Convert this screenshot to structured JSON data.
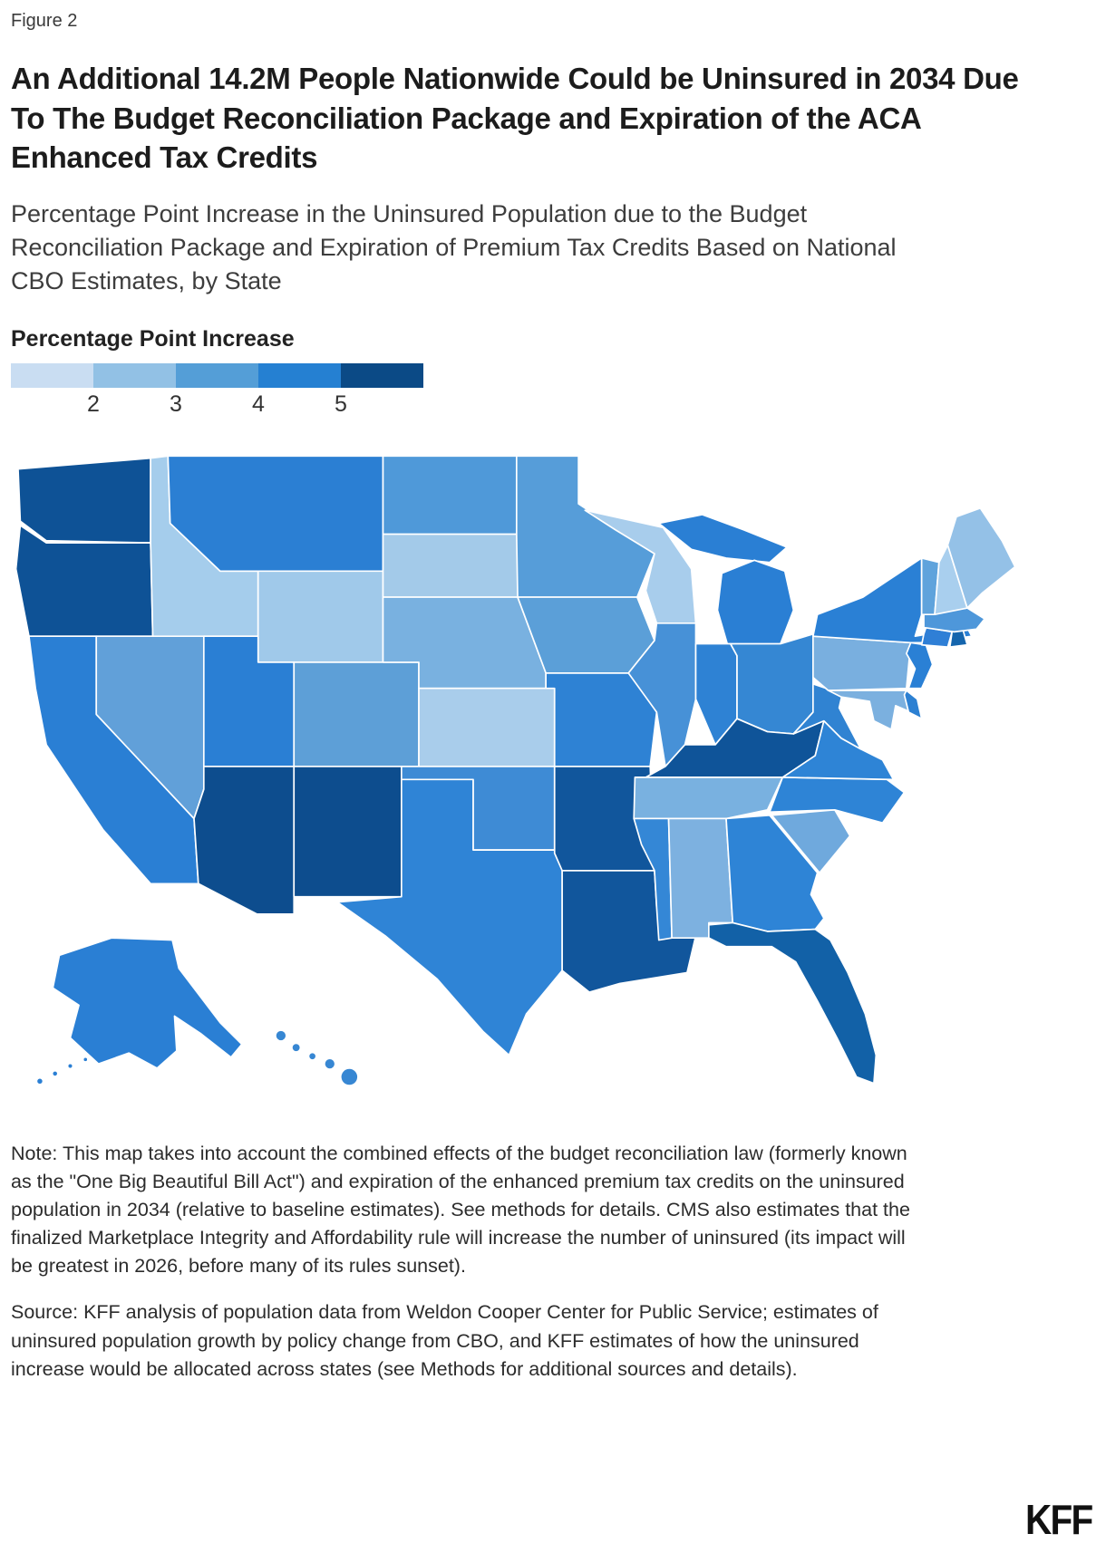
{
  "figure_label": "Figure 2",
  "title": "An Additional 14.2M People Nationwide Could be Uninsured in 2034 Due To The Budget Reconciliation Package and Expiration of the ACA Enhanced Tax Credits",
  "subtitle": "Percentage Point Increase in the Uninsured Population due to the Budget Reconciliation Package and Expiration of Premium Tax Credits Based on National CBO Estimates, by State",
  "note": "Note: This map takes into account the combined effects of the budget reconciliation law (formerly known as the \"One Big Beautiful Bill Act\") and expiration of the enhanced premium tax credits on the uninsured population in 2034 (relative to baseline estimates). See methods for details. CMS also estimates that the finalized Marketplace Integrity and Affordability rule will increase the number of uninsured (its impact will be greatest in 2026, before many of its rules sunset).",
  "source": "Source: KFF analysis of population data from Weldon Cooper Center for Public Service; estimates of uninsured population growth by policy change from CBO, and KFF estimates of how the uninsured increase would be allocated across states (see Methods for additional sources and details).",
  "logo_text": "KFF",
  "chart_data": {
    "type": "choropleth_map",
    "region": "United States, by state",
    "metric": "Percentage point increase in the uninsured population in 2034",
    "unit": "percentage points",
    "legend": {
      "title": "Percentage Point Increase",
      "tick_labels": [
        "2",
        "3",
        "4",
        "5"
      ],
      "colors": [
        "#C9DDF2",
        "#92C1E5",
        "#549ED7",
        "#2580D2",
        "#0B4A86"
      ],
      "scale_min": 1.5,
      "scale_max": 5.5
    },
    "value_note": "approx_value estimated from the continuous blue color scale shown in the legend; fill is the rendered state color",
    "states": [
      {
        "abbr": "WA",
        "name": "Washington",
        "approx_value": 5.5,
        "fill": "#0E5296"
      },
      {
        "abbr": "OR",
        "name": "Oregon",
        "approx_value": 5.5,
        "fill": "#0E5296"
      },
      {
        "abbr": "CA",
        "name": "California",
        "approx_value": 4.5,
        "fill": "#2A7FD4"
      },
      {
        "abbr": "NV",
        "name": "Nevada",
        "approx_value": 3.6,
        "fill": "#61A0D9"
      },
      {
        "abbr": "ID",
        "name": "Idaho",
        "approx_value": 2.5,
        "fill": "#A5CDEC"
      },
      {
        "abbr": "MT",
        "name": "Montana",
        "approx_value": 4.4,
        "fill": "#2B7FD3"
      },
      {
        "abbr": "WY",
        "name": "Wyoming",
        "approx_value": 2.4,
        "fill": "#A0C9EA"
      },
      {
        "abbr": "UT",
        "name": "Utah",
        "approx_value": 4.5,
        "fill": "#2A7FD4"
      },
      {
        "abbr": "CO",
        "name": "Colorado",
        "approx_value": 3.6,
        "fill": "#5D9FD7"
      },
      {
        "abbr": "AZ",
        "name": "Arizona",
        "approx_value": 5.6,
        "fill": "#0D4D8E"
      },
      {
        "abbr": "NM",
        "name": "New Mexico",
        "approx_value": 5.6,
        "fill": "#0D4D8E"
      },
      {
        "abbr": "AK",
        "name": "Alaska",
        "approx_value": 4.4,
        "fill": "#2A7FD4"
      },
      {
        "abbr": "HI",
        "name": "Hawaii",
        "approx_value": 4.2,
        "fill": "#3787D3"
      },
      {
        "abbr": "ND",
        "name": "North Dakota",
        "approx_value": 3.9,
        "fill": "#4F99D9"
      },
      {
        "abbr": "SD",
        "name": "South Dakota",
        "approx_value": 2.5,
        "fill": "#A3CAE9"
      },
      {
        "abbr": "NE",
        "name": "Nebraska",
        "approx_value": 3.0,
        "fill": "#79B1E0"
      },
      {
        "abbr": "KS",
        "name": "Kansas",
        "approx_value": 2.4,
        "fill": "#A9CDEB"
      },
      {
        "abbr": "OK",
        "name": "Oklahoma",
        "approx_value": 4.1,
        "fill": "#3E8BD5"
      },
      {
        "abbr": "TX",
        "name": "Texas",
        "approx_value": 4.3,
        "fill": "#2F84D6"
      },
      {
        "abbr": "MN",
        "name": "Minnesota",
        "approx_value": 3.7,
        "fill": "#569DD9"
      },
      {
        "abbr": "IA",
        "name": "Iowa",
        "approx_value": 3.6,
        "fill": "#5B9FD8"
      },
      {
        "abbr": "MO",
        "name": "Missouri",
        "approx_value": 4.4,
        "fill": "#2E82D4"
      },
      {
        "abbr": "AR",
        "name": "Arkansas",
        "approx_value": 5.5,
        "fill": "#11569C"
      },
      {
        "abbr": "LA",
        "name": "Louisiana",
        "approx_value": 5.5,
        "fill": "#11569C"
      },
      {
        "abbr": "WI",
        "name": "Wisconsin",
        "approx_value": 2.4,
        "fill": "#A8CDEC"
      },
      {
        "abbr": "IL",
        "name": "Illinois",
        "approx_value": 4.0,
        "fill": "#4791D7"
      },
      {
        "abbr": "MI",
        "name": "Michigan",
        "approx_value": 4.5,
        "fill": "#2A7FD4"
      },
      {
        "abbr": "IN",
        "name": "Indiana",
        "approx_value": 4.4,
        "fill": "#2E82D4"
      },
      {
        "abbr": "OH",
        "name": "Ohio",
        "approx_value": 4.3,
        "fill": "#3587D3"
      },
      {
        "abbr": "KY",
        "name": "Kentucky",
        "approx_value": 5.4,
        "fill": "#0F5499"
      },
      {
        "abbr": "TN",
        "name": "Tennessee",
        "approx_value": 3.1,
        "fill": "#79B1E0"
      },
      {
        "abbr": "MS",
        "name": "Mississippi",
        "approx_value": 4.2,
        "fill": "#3487D6"
      },
      {
        "abbr": "AL",
        "name": "Alabama",
        "approx_value": 3.0,
        "fill": "#7DB1E0"
      },
      {
        "abbr": "GA",
        "name": "Georgia",
        "approx_value": 4.3,
        "fill": "#2E84D6"
      },
      {
        "abbr": "FL",
        "name": "Florida",
        "approx_value": 5.0,
        "fill": "#1261A7"
      },
      {
        "abbr": "SC",
        "name": "South Carolina",
        "approx_value": 3.3,
        "fill": "#6FA9DD"
      },
      {
        "abbr": "NC",
        "name": "North Carolina",
        "approx_value": 4.3,
        "fill": "#2E84D6"
      },
      {
        "abbr": "VA",
        "name": "Virginia",
        "approx_value": 4.3,
        "fill": "#2E84D6"
      },
      {
        "abbr": "WV",
        "name": "West Virginia",
        "approx_value": 4.2,
        "fill": "#3083D2"
      },
      {
        "abbr": "PA",
        "name": "Pennsylvania",
        "approx_value": 3.2,
        "fill": "#79AFDF"
      },
      {
        "abbr": "NY",
        "name": "New York",
        "approx_value": 4.4,
        "fill": "#2A80D5"
      },
      {
        "abbr": "NJ",
        "name": "New Jersey",
        "approx_value": 4.4,
        "fill": "#2A80D5"
      },
      {
        "abbr": "MD",
        "name": "Maryland",
        "approx_value": 3.2,
        "fill": "#7BB0DF"
      },
      {
        "abbr": "DE",
        "name": "Delaware",
        "approx_value": 4.3,
        "fill": "#2C80D2"
      },
      {
        "abbr": "CT",
        "name": "Connecticut",
        "approx_value": 4.4,
        "fill": "#2F7FD6"
      },
      {
        "abbr": "RI",
        "name": "Rhode Island",
        "approx_value": 4.8,
        "fill": "#1565AD"
      },
      {
        "abbr": "MA",
        "name": "Massachusetts",
        "approx_value": 3.8,
        "fill": "#4E97DA"
      },
      {
        "abbr": "VT",
        "name": "Vermont",
        "approx_value": 3.5,
        "fill": "#5FA3DC"
      },
      {
        "abbr": "NH",
        "name": "New Hampshire",
        "approx_value": 2.2,
        "fill": "#A9CFEE"
      },
      {
        "abbr": "ME",
        "name": "Maine",
        "approx_value": 2.7,
        "fill": "#94C1E7"
      }
    ]
  }
}
